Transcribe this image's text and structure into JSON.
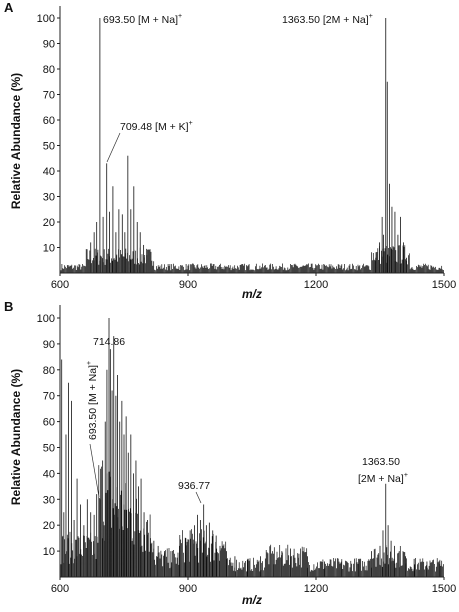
{
  "chart_data": [
    {
      "panel": "A",
      "type": "bar",
      "title": "",
      "xlabel": "m/z",
      "ylabel": "Relative Abundance (%)",
      "xlim": [
        600,
        1500
      ],
      "ylim": [
        0,
        105
      ],
      "xticks": [
        600,
        900,
        1200,
        1500
      ],
      "yticks": [
        10,
        20,
        30,
        40,
        50,
        60,
        70,
        80,
        90,
        100
      ],
      "grid": false,
      "peaks": [
        {
          "x": 672,
          "y": 12
        },
        {
          "x": 680,
          "y": 16
        },
        {
          "x": 686,
          "y": 20
        },
        {
          "x": 693.5,
          "y": 100
        },
        {
          "x": 701,
          "y": 22
        },
        {
          "x": 709.48,
          "y": 43
        },
        {
          "x": 716,
          "y": 24
        },
        {
          "x": 724,
          "y": 34
        },
        {
          "x": 731,
          "y": 16
        },
        {
          "x": 738,
          "y": 25
        },
        {
          "x": 746,
          "y": 23
        },
        {
          "x": 752,
          "y": 16
        },
        {
          "x": 759,
          "y": 46
        },
        {
          "x": 766,
          "y": 25
        },
        {
          "x": 773,
          "y": 34
        },
        {
          "x": 781,
          "y": 20
        },
        {
          "x": 788,
          "y": 16
        },
        {
          "x": 796,
          "y": 11
        },
        {
          "x": 804,
          "y": 7
        },
        {
          "x": 1340,
          "y": 6
        },
        {
          "x": 1349,
          "y": 12
        },
        {
          "x": 1355,
          "y": 22
        },
        {
          "x": 1358,
          "y": 15
        },
        {
          "x": 1363.5,
          "y": 100
        },
        {
          "x": 1367,
          "y": 75
        },
        {
          "x": 1372,
          "y": 35
        },
        {
          "x": 1378,
          "y": 26
        },
        {
          "x": 1385,
          "y": 24
        },
        {
          "x": 1392,
          "y": 15
        },
        {
          "x": 1398,
          "y": 22
        },
        {
          "x": 1405,
          "y": 12
        },
        {
          "x": 1412,
          "y": 6
        }
      ],
      "annotations": [
        {
          "text": "693.50 [M + Na]",
          "sup": "+",
          "x": 693.5,
          "y": 100
        },
        {
          "text": "709.48 [M + K]",
          "sup": "+",
          "x": 709.48,
          "y": 43
        },
        {
          "text": "1363.50 [2M + Na]",
          "sup": "+",
          "x": 1363.5,
          "y": 100
        }
      ]
    },
    {
      "panel": "B",
      "type": "bar",
      "title": "",
      "xlabel": "m/z",
      "ylabel": "Relative Abundance (%)",
      "xlim": [
        600,
        1500
      ],
      "ylim": [
        0,
        105
      ],
      "xticks": [
        600,
        900,
        1200,
        1500
      ],
      "yticks": [
        10,
        20,
        30,
        40,
        50,
        60,
        70,
        80,
        90,
        100
      ],
      "grid": false,
      "peaks": [
        {
          "x": 604,
          "y": 84
        },
        {
          "x": 609,
          "y": 25
        },
        {
          "x": 614,
          "y": 55
        },
        {
          "x": 620,
          "y": 75
        },
        {
          "x": 627,
          "y": 68
        },
        {
          "x": 633,
          "y": 22
        },
        {
          "x": 640,
          "y": 38
        },
        {
          "x": 648,
          "y": 28
        },
        {
          "x": 656,
          "y": 20
        },
        {
          "x": 664,
          "y": 30
        },
        {
          "x": 672,
          "y": 25
        },
        {
          "x": 680,
          "y": 24
        },
        {
          "x": 686,
          "y": 32
        },
        {
          "x": 693.5,
          "y": 30
        },
        {
          "x": 700,
          "y": 45
        },
        {
          "x": 706,
          "y": 60
        },
        {
          "x": 710,
          "y": 80
        },
        {
          "x": 714.86,
          "y": 100
        },
        {
          "x": 718,
          "y": 88
        },
        {
          "x": 722,
          "y": 72
        },
        {
          "x": 726,
          "y": 93
        },
        {
          "x": 731,
          "y": 70
        },
        {
          "x": 735,
          "y": 78
        },
        {
          "x": 740,
          "y": 60
        },
        {
          "x": 745,
          "y": 68
        },
        {
          "x": 750,
          "y": 55
        },
        {
          "x": 755,
          "y": 62
        },
        {
          "x": 760,
          "y": 48
        },
        {
          "x": 766,
          "y": 55
        },
        {
          "x": 772,
          "y": 40
        },
        {
          "x": 778,
          "y": 45
        },
        {
          "x": 784,
          "y": 35
        },
        {
          "x": 790,
          "y": 38
        },
        {
          "x": 797,
          "y": 25
        },
        {
          "x": 805,
          "y": 22
        },
        {
          "x": 812,
          "y": 15
        },
        {
          "x": 820,
          "y": 14
        },
        {
          "x": 830,
          "y": 12
        },
        {
          "x": 845,
          "y": 10
        },
        {
          "x": 860,
          "y": 10
        },
        {
          "x": 880,
          "y": 12
        },
        {
          "x": 895,
          "y": 15
        },
        {
          "x": 905,
          "y": 18
        },
        {
          "x": 915,
          "y": 20
        },
        {
          "x": 922,
          "y": 24
        },
        {
          "x": 929,
          "y": 22
        },
        {
          "x": 936.77,
          "y": 28
        },
        {
          "x": 943,
          "y": 20
        },
        {
          "x": 950,
          "y": 21
        },
        {
          "x": 958,
          "y": 18
        },
        {
          "x": 966,
          "y": 16
        },
        {
          "x": 975,
          "y": 12
        },
        {
          "x": 990,
          "y": 10
        },
        {
          "x": 1010,
          "y": 8
        },
        {
          "x": 1040,
          "y": 7
        },
        {
          "x": 1070,
          "y": 8
        },
        {
          "x": 1100,
          "y": 9
        },
        {
          "x": 1120,
          "y": 10
        },
        {
          "x": 1140,
          "y": 11
        },
        {
          "x": 1160,
          "y": 9
        },
        {
          "x": 1180,
          "y": 8
        },
        {
          "x": 1220,
          "y": 6
        },
        {
          "x": 1260,
          "y": 6
        },
        {
          "x": 1300,
          "y": 7
        },
        {
          "x": 1330,
          "y": 10
        },
        {
          "x": 1350,
          "y": 12
        },
        {
          "x": 1357,
          "y": 18
        },
        {
          "x": 1363.5,
          "y": 36
        },
        {
          "x": 1369,
          "y": 20
        },
        {
          "x": 1376,
          "y": 14
        },
        {
          "x": 1384,
          "y": 12
        },
        {
          "x": 1395,
          "y": 10
        },
        {
          "x": 1410,
          "y": 8
        },
        {
          "x": 1430,
          "y": 7
        },
        {
          "x": 1460,
          "y": 6
        },
        {
          "x": 1490,
          "y": 5
        }
      ],
      "annotations": [
        {
          "text": "714.86",
          "x": 714.86,
          "y": 100
        },
        {
          "text": "693.50 [M + Na]",
          "sup": "+",
          "x": 693.5,
          "y": 30,
          "rotated": true
        },
        {
          "text": "936.77",
          "x": 936.77,
          "y": 28
        },
        {
          "text": "1363.50",
          "x": 1363.5,
          "y": 36
        },
        {
          "text": "[2M + Na]",
          "sup": "+",
          "x": 1363.5,
          "y": 36
        }
      ]
    }
  ]
}
